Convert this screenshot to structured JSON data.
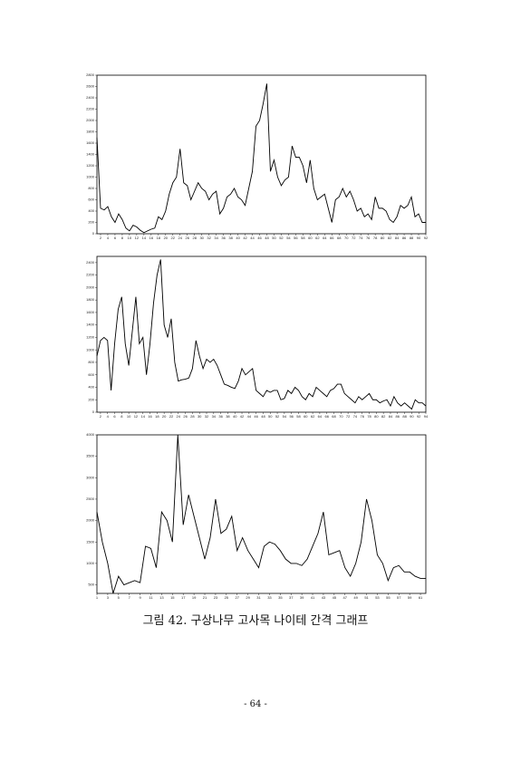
{
  "chart_data": [
    {
      "type": "line",
      "x": [
        1,
        2,
        3,
        4,
        5,
        6,
        7,
        8,
        9,
        10,
        11,
        12,
        13,
        14,
        15,
        16,
        17,
        18,
        19,
        20,
        21,
        22,
        23,
        24,
        25,
        26,
        27,
        28,
        29,
        30,
        31,
        32,
        33,
        34,
        35,
        36,
        37,
        38,
        39,
        40,
        41,
        42,
        43,
        44,
        45,
        46,
        47,
        48,
        49,
        50,
        51,
        52,
        53,
        54,
        55,
        56,
        57,
        58,
        59,
        60,
        61,
        62,
        63,
        64,
        65,
        66,
        67,
        68,
        69,
        70,
        71,
        72,
        73,
        74,
        75,
        76,
        77,
        78,
        79,
        80,
        81,
        82,
        83,
        84,
        85,
        86,
        87,
        88,
        89,
        90,
        91,
        92
      ],
      "series": [
        {
          "color": "#000000",
          "values": [
            1700,
            450,
            420,
            480,
            300,
            200,
            350,
            250,
            100,
            50,
            150,
            120,
            60,
            20,
            50,
            80,
            100,
            300,
            250,
            400,
            700,
            900,
            1000,
            1500,
            900,
            850,
            600,
            750,
            900,
            800,
            750,
            600,
            700,
            750,
            350,
            450,
            650,
            700,
            800,
            650,
            600,
            500,
            800,
            1100,
            1900,
            2000,
            2300,
            2650,
            1100,
            1300,
            1000,
            850,
            950,
            1000,
            1550,
            1350,
            1350,
            1200,
            900,
            1300,
            800,
            600,
            650,
            700,
            450,
            200,
            600,
            650,
            800,
            650,
            750,
            600,
            400,
            450,
            300,
            350,
            250,
            650,
            450,
            450,
            400,
            250,
            200,
            300,
            500,
            450,
            500,
            650,
            300,
            350,
            200,
            200
          ]
        }
      ],
      "xlim": [
        1,
        92
      ],
      "xticks": [
        2,
        4,
        6,
        8,
        10,
        12,
        14,
        16,
        18,
        20,
        22,
        24,
        26,
        28,
        30,
        32,
        34,
        36,
        38,
        40,
        42,
        44,
        46,
        48,
        50,
        52,
        54,
        56,
        58,
        60,
        62,
        64,
        66,
        68,
        70,
        72,
        74,
        76,
        78,
        80,
        82,
        84,
        86,
        88,
        90,
        92
      ],
      "ylim": [
        0,
        2800
      ],
      "yticks": [
        0,
        200,
        400,
        600,
        800,
        1000,
        1200,
        1400,
        1600,
        1800,
        2000,
        2200,
        2400,
        2600,
        2800
      ]
    },
    {
      "type": "line",
      "x": [
        1,
        2,
        3,
        4,
        5,
        6,
        7,
        8,
        9,
        10,
        11,
        12,
        13,
        14,
        15,
        16,
        17,
        18,
        19,
        20,
        21,
        22,
        23,
        24,
        25,
        26,
        27,
        28,
        29,
        30,
        31,
        32,
        33,
        34,
        35,
        36,
        37,
        38,
        39,
        40,
        41,
        42,
        43,
        44,
        45,
        46,
        47,
        48,
        49,
        50,
        51,
        52,
        53,
        54,
        55,
        56,
        57,
        58,
        59,
        60,
        61,
        62,
        63,
        64,
        65,
        66,
        67,
        68,
        69,
        70,
        71,
        72,
        73,
        74,
        75,
        76,
        77,
        78,
        79,
        80,
        81,
        82,
        83,
        84,
        85,
        86,
        87,
        88,
        89,
        90,
        91,
        92,
        93,
        94
      ],
      "series": [
        {
          "color": "#000000",
          "values": [
            900,
            1150,
            1200,
            1150,
            350,
            1100,
            1650,
            1850,
            1100,
            750,
            1300,
            1850,
            1100,
            1200,
            600,
            1100,
            1750,
            2200,
            2450,
            1400,
            1200,
            1500,
            800,
            500,
            520,
            530,
            550,
            700,
            1150,
            900,
            700,
            850,
            800,
            850,
            750,
            600,
            450,
            430,
            400,
            380,
            500,
            700,
            600,
            650,
            700,
            350,
            300,
            250,
            350,
            320,
            350,
            350,
            200,
            220,
            350,
            300,
            400,
            350,
            250,
            200,
            300,
            250,
            400,
            350,
            300,
            250,
            350,
            380,
            450,
            450,
            300,
            250,
            200,
            150,
            250,
            200,
            250,
            300,
            200,
            200,
            150,
            180,
            200,
            100,
            250,
            150,
            100,
            150,
            100,
            50,
            200,
            150,
            150,
            100
          ]
        }
      ],
      "xlim": [
        1,
        94
      ],
      "xticks": [
        2,
        4,
        6,
        8,
        10,
        12,
        14,
        16,
        18,
        20,
        22,
        24,
        26,
        28,
        30,
        32,
        34,
        36,
        38,
        40,
        42,
        44,
        46,
        48,
        50,
        52,
        54,
        56,
        58,
        60,
        62,
        64,
        66,
        68,
        70,
        72,
        74,
        76,
        78,
        80,
        82,
        84,
        86,
        88,
        90,
        92,
        94
      ],
      "ylim": [
        0,
        2500
      ],
      "yticks": [
        0,
        200,
        400,
        600,
        800,
        1000,
        1200,
        1400,
        1600,
        1800,
        2000,
        2200,
        2400
      ]
    },
    {
      "type": "line",
      "x": [
        1,
        2,
        3,
        4,
        5,
        6,
        7,
        8,
        9,
        10,
        11,
        12,
        13,
        14,
        15,
        16,
        17,
        18,
        19,
        20,
        21,
        22,
        23,
        24,
        25,
        26,
        27,
        28,
        29,
        30,
        31,
        32,
        33,
        34,
        35,
        36,
        37,
        38,
        39,
        40,
        41,
        42,
        43,
        44,
        45,
        46,
        47,
        48,
        49,
        50,
        51,
        52,
        53,
        54,
        55,
        56,
        57,
        58,
        59,
        60,
        61,
        62
      ],
      "series": [
        {
          "color": "#000000",
          "values": [
            2200,
            1500,
            1000,
            300,
            700,
            500,
            550,
            600,
            550,
            1400,
            1350,
            900,
            2200,
            2000,
            1500,
            4000,
            1900,
            2600,
            2100,
            1600,
            1100,
            1600,
            2500,
            1700,
            1800,
            2100,
            1300,
            1600,
            1300,
            1100,
            900,
            1400,
            1500,
            1450,
            1300,
            1100,
            1000,
            1000,
            950,
            1100,
            1400,
            1700,
            2200,
            1200,
            1250,
            1300,
            900,
            700,
            1000,
            1500,
            2500,
            2000,
            1200,
            1000,
            600,
            900,
            950,
            800,
            800,
            700,
            650,
            650
          ]
        }
      ],
      "xlim": [
        1,
        62
      ],
      "xticks": [
        1,
        3,
        5,
        7,
        9,
        11,
        13,
        15,
        17,
        19,
        21,
        23,
        25,
        27,
        29,
        31,
        33,
        35,
        37,
        39,
        41,
        43,
        45,
        47,
        49,
        51,
        53,
        55,
        57,
        59,
        61
      ],
      "ylim": [
        300,
        4000
      ],
      "yticks": [
        500,
        1000,
        1500,
        2000,
        2500,
        3000,
        3500,
        4000
      ]
    }
  ],
  "caption": "그림 42. 구상나무 고사목 나이테 간격 그래프",
  "page_number": "- 64 -"
}
